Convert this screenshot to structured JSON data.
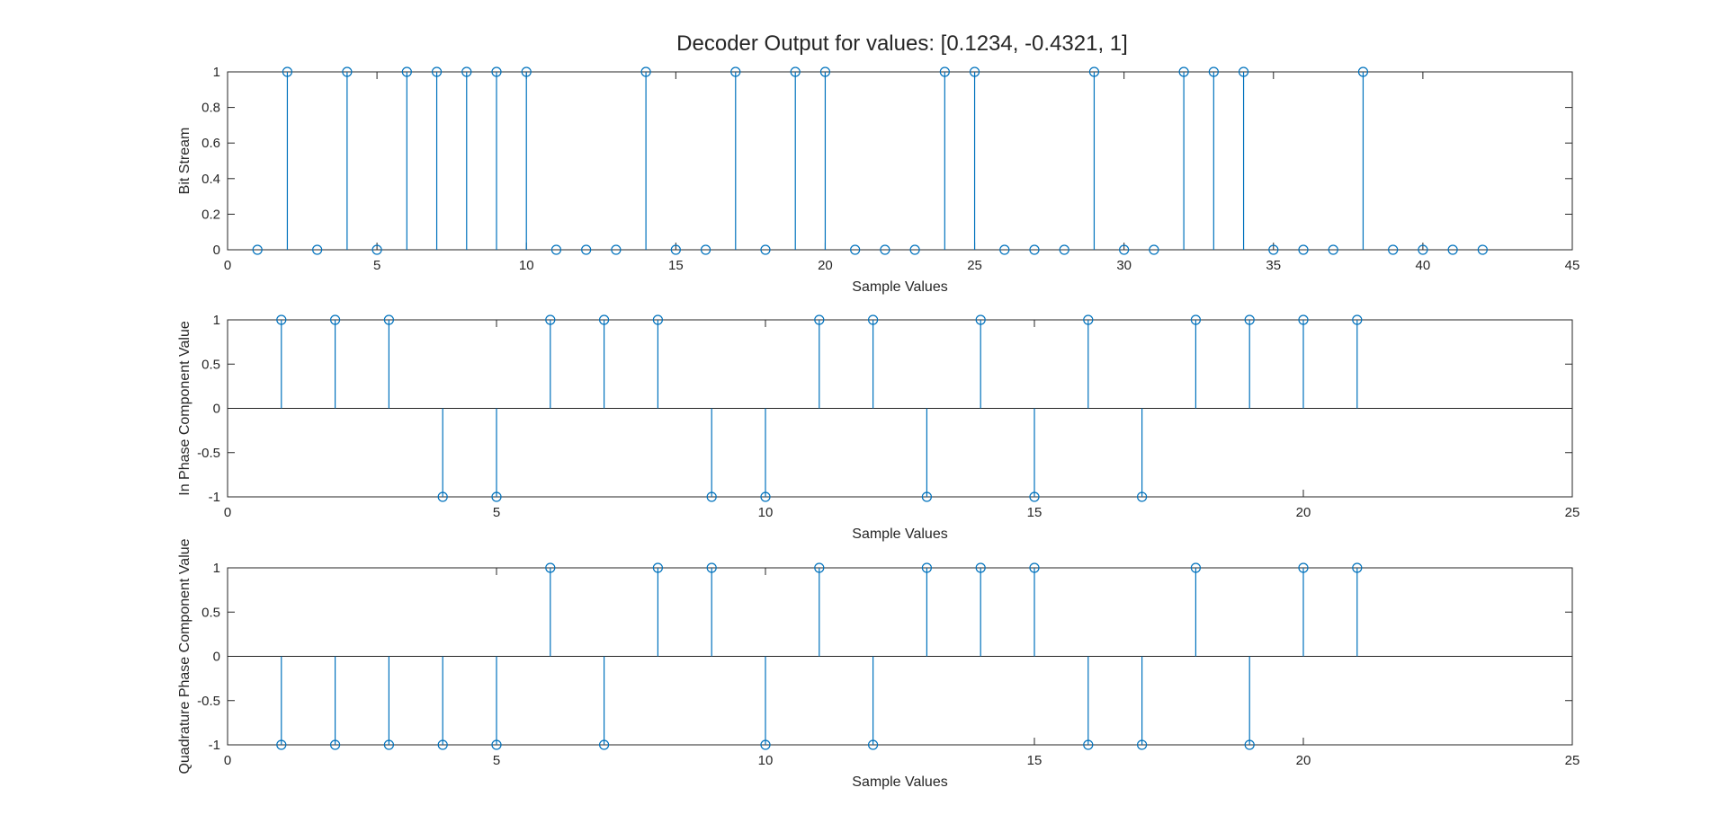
{
  "chart_data": {
    "title": "Decoder Output for values: [0.1234, -0.4321, 1]",
    "stem_color": "#0072BD",
    "axes_color": "#262626",
    "plots": [
      {
        "type": "stem",
        "xlabel": "Sample Values",
        "ylabel": "Bit Stream",
        "xlim": [
          0,
          45
        ],
        "ylim": [
          0,
          1
        ],
        "baseline": 0,
        "xticks": [
          0,
          5,
          10,
          15,
          20,
          25,
          30,
          35,
          40,
          45
        ],
        "xtick_labels": [
          "0",
          "5",
          "10",
          "15",
          "20",
          "25",
          "30",
          "35",
          "40",
          "45"
        ],
        "yticks": [
          0,
          0.2,
          0.4,
          0.6,
          0.8,
          1
        ],
        "ytick_labels": [
          "0",
          "0.2",
          "0.4",
          "0.6",
          "0.8",
          "1"
        ],
        "x": [
          1,
          2,
          3,
          4,
          5,
          6,
          7,
          8,
          9,
          10,
          11,
          12,
          13,
          14,
          15,
          16,
          17,
          18,
          19,
          20,
          21,
          22,
          23,
          24,
          25,
          26,
          27,
          28,
          29,
          30,
          31,
          32,
          33,
          34,
          35,
          36,
          37,
          38,
          39,
          40,
          41,
          42
        ],
        "y": [
          0,
          1,
          0,
          1,
          0,
          1,
          1,
          1,
          1,
          1,
          0,
          0,
          0,
          1,
          0,
          0,
          1,
          0,
          1,
          1,
          0,
          0,
          0,
          1,
          1,
          0,
          0,
          0,
          1,
          0,
          0,
          1,
          1,
          1,
          0,
          0,
          0,
          1,
          0,
          0,
          0,
          0
        ]
      },
      {
        "type": "stem",
        "xlabel": "Sample Values",
        "ylabel": "In Phase Component Value",
        "xlim": [
          0,
          25
        ],
        "ylim": [
          -1,
          1
        ],
        "baseline": 0,
        "xticks": [
          0,
          5,
          10,
          15,
          20,
          25
        ],
        "xtick_labels": [
          "0",
          "5",
          "10",
          "15",
          "20",
          "25"
        ],
        "yticks": [
          -1,
          -0.5,
          0,
          0.5,
          1
        ],
        "ytick_labels": [
          "-1",
          "-0.5",
          "0",
          "0.5",
          "1"
        ],
        "x": [
          1,
          2,
          3,
          4,
          5,
          6,
          7,
          8,
          9,
          10,
          11,
          12,
          13,
          14,
          15,
          16,
          17,
          18,
          19,
          20,
          21
        ],
        "y": [
          1,
          1,
          1,
          -1,
          -1,
          1,
          1,
          1,
          -1,
          -1,
          1,
          1,
          -1,
          1,
          -1,
          1,
          -1,
          1,
          1,
          1,
          1
        ]
      },
      {
        "type": "stem",
        "xlabel": "Sample Values",
        "ylabel": "Quadrature Phase Component Value",
        "xlim": [
          0,
          25
        ],
        "ylim": [
          -1,
          1
        ],
        "baseline": 0,
        "xticks": [
          0,
          5,
          10,
          15,
          20,
          25
        ],
        "xtick_labels": [
          "0",
          "5",
          "10",
          "15",
          "20",
          "25"
        ],
        "yticks": [
          -1,
          -0.5,
          0,
          0.5,
          1
        ],
        "ytick_labels": [
          "-1",
          "-0.5",
          "0",
          "0.5",
          "1"
        ],
        "x": [
          1,
          2,
          3,
          4,
          5,
          6,
          7,
          8,
          9,
          10,
          11,
          12,
          13,
          14,
          15,
          16,
          17,
          18,
          19,
          20,
          21
        ],
        "y": [
          -1,
          -1,
          -1,
          -1,
          -1,
          1,
          -1,
          1,
          1,
          -1,
          1,
          -1,
          1,
          1,
          1,
          -1,
          -1,
          1,
          -1,
          1,
          1
        ]
      }
    ]
  }
}
